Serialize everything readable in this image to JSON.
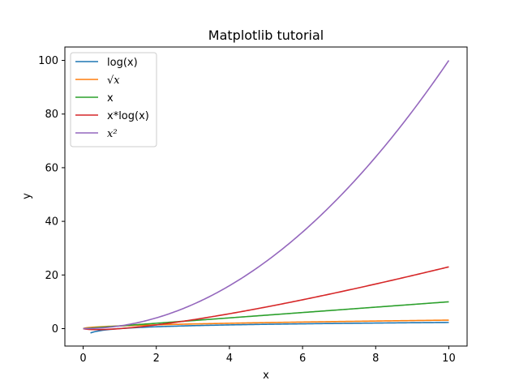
{
  "chart_data": {
    "type": "line",
    "title": "Matplotlib tutorial",
    "xlabel": "x",
    "ylabel": "y",
    "xlim": [
      -0.5,
      10.5
    ],
    "ylim": [
      -6.5,
      105
    ],
    "x_ticks": [
      0,
      2,
      4,
      6,
      8,
      10
    ],
    "y_ticks": [
      0,
      20,
      40,
      60,
      80,
      100
    ],
    "grid": false,
    "legend": "top-left",
    "series": [
      {
        "name": "log(x)",
        "function": "log",
        "x_start": 0.2,
        "x_end": 10,
        "color": "#1f77b4"
      },
      {
        "name": "√x",
        "function": "sqrt",
        "x_start": 0,
        "x_end": 10,
        "color": "#ff7f0e"
      },
      {
        "name": "x",
        "function": "linear",
        "x_start": 0,
        "x_end": 10,
        "color": "#2ca02c"
      },
      {
        "name": "x*log(x)",
        "function": "xlogx",
        "x_start": 0,
        "x_end": 10,
        "color": "#d62728"
      },
      {
        "name": "x²",
        "function": "square",
        "x_start": 0,
        "x_end": 10,
        "color": "#9467bd"
      }
    ]
  }
}
